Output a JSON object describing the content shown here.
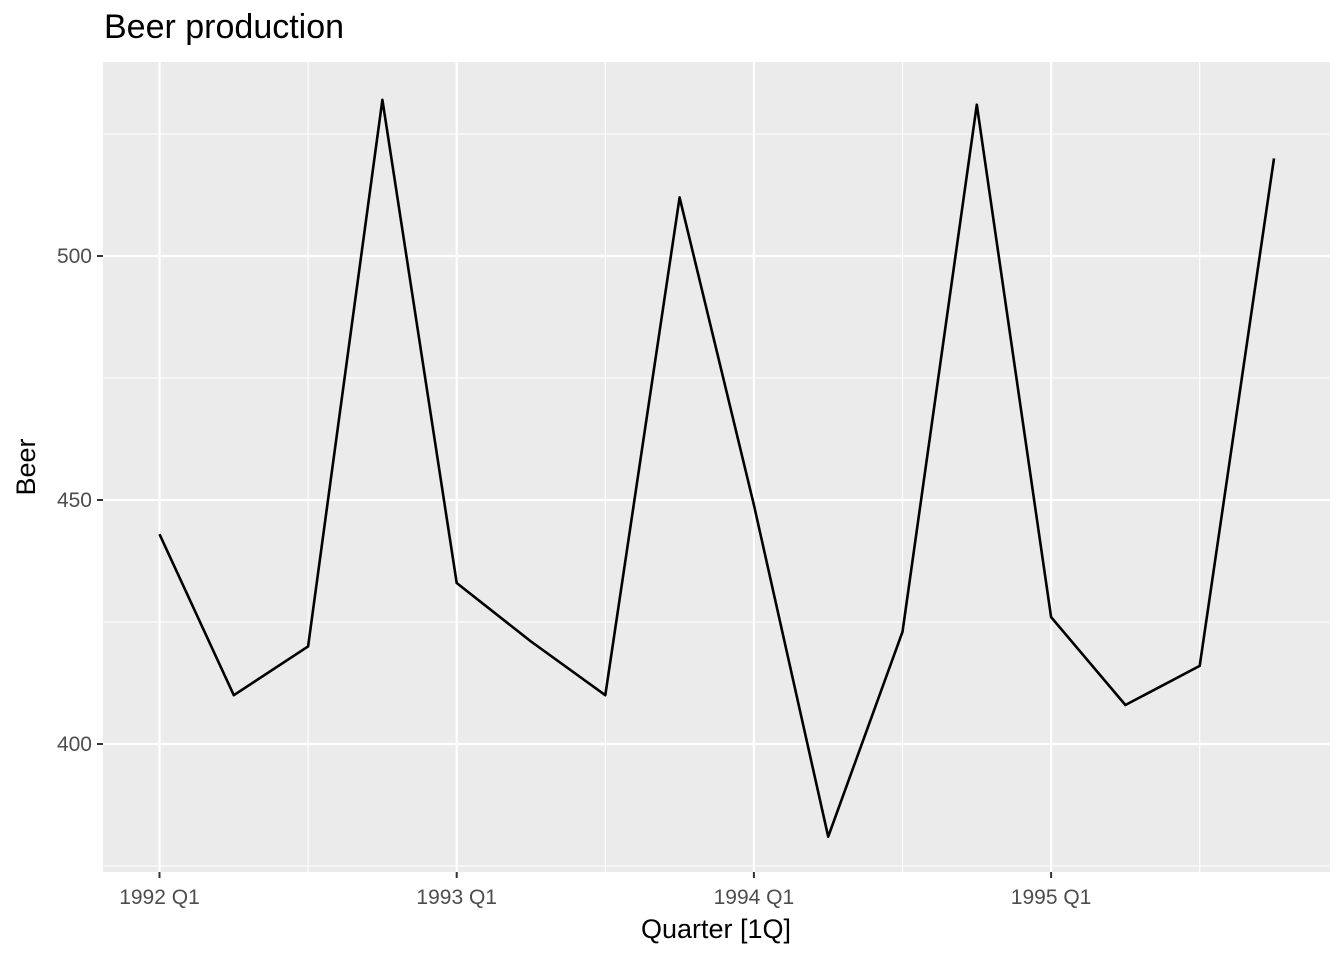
{
  "chart_data": {
    "type": "line",
    "title": "Beer production",
    "xlabel": "Quarter [1Q]",
    "ylabel": "Beer",
    "x": [
      "1992 Q1",
      "1992 Q2",
      "1992 Q3",
      "1992 Q4",
      "1993 Q1",
      "1993 Q2",
      "1993 Q3",
      "1993 Q4",
      "1994 Q1",
      "1994 Q2",
      "1994 Q3",
      "1994 Q4",
      "1995 Q1",
      "1995 Q2",
      "1995 Q3",
      "1995 Q4"
    ],
    "x_tick_labels": [
      "1992 Q1",
      "1993 Q1",
      "1994 Q1",
      "1995 Q1"
    ],
    "series": [
      {
        "values": [
          443,
          410,
          420,
          532,
          433,
          421,
          410,
          512,
          449,
          381,
          423,
          531,
          426,
          408,
          416,
          520
        ]
      }
    ],
    "y_ticks": [
      400,
      450,
      500
    ],
    "ylim": [
      375,
      540
    ],
    "grid": true,
    "colors": {
      "panel": "#ebebeb",
      "grid": "#ffffff",
      "line": "#000000"
    }
  }
}
